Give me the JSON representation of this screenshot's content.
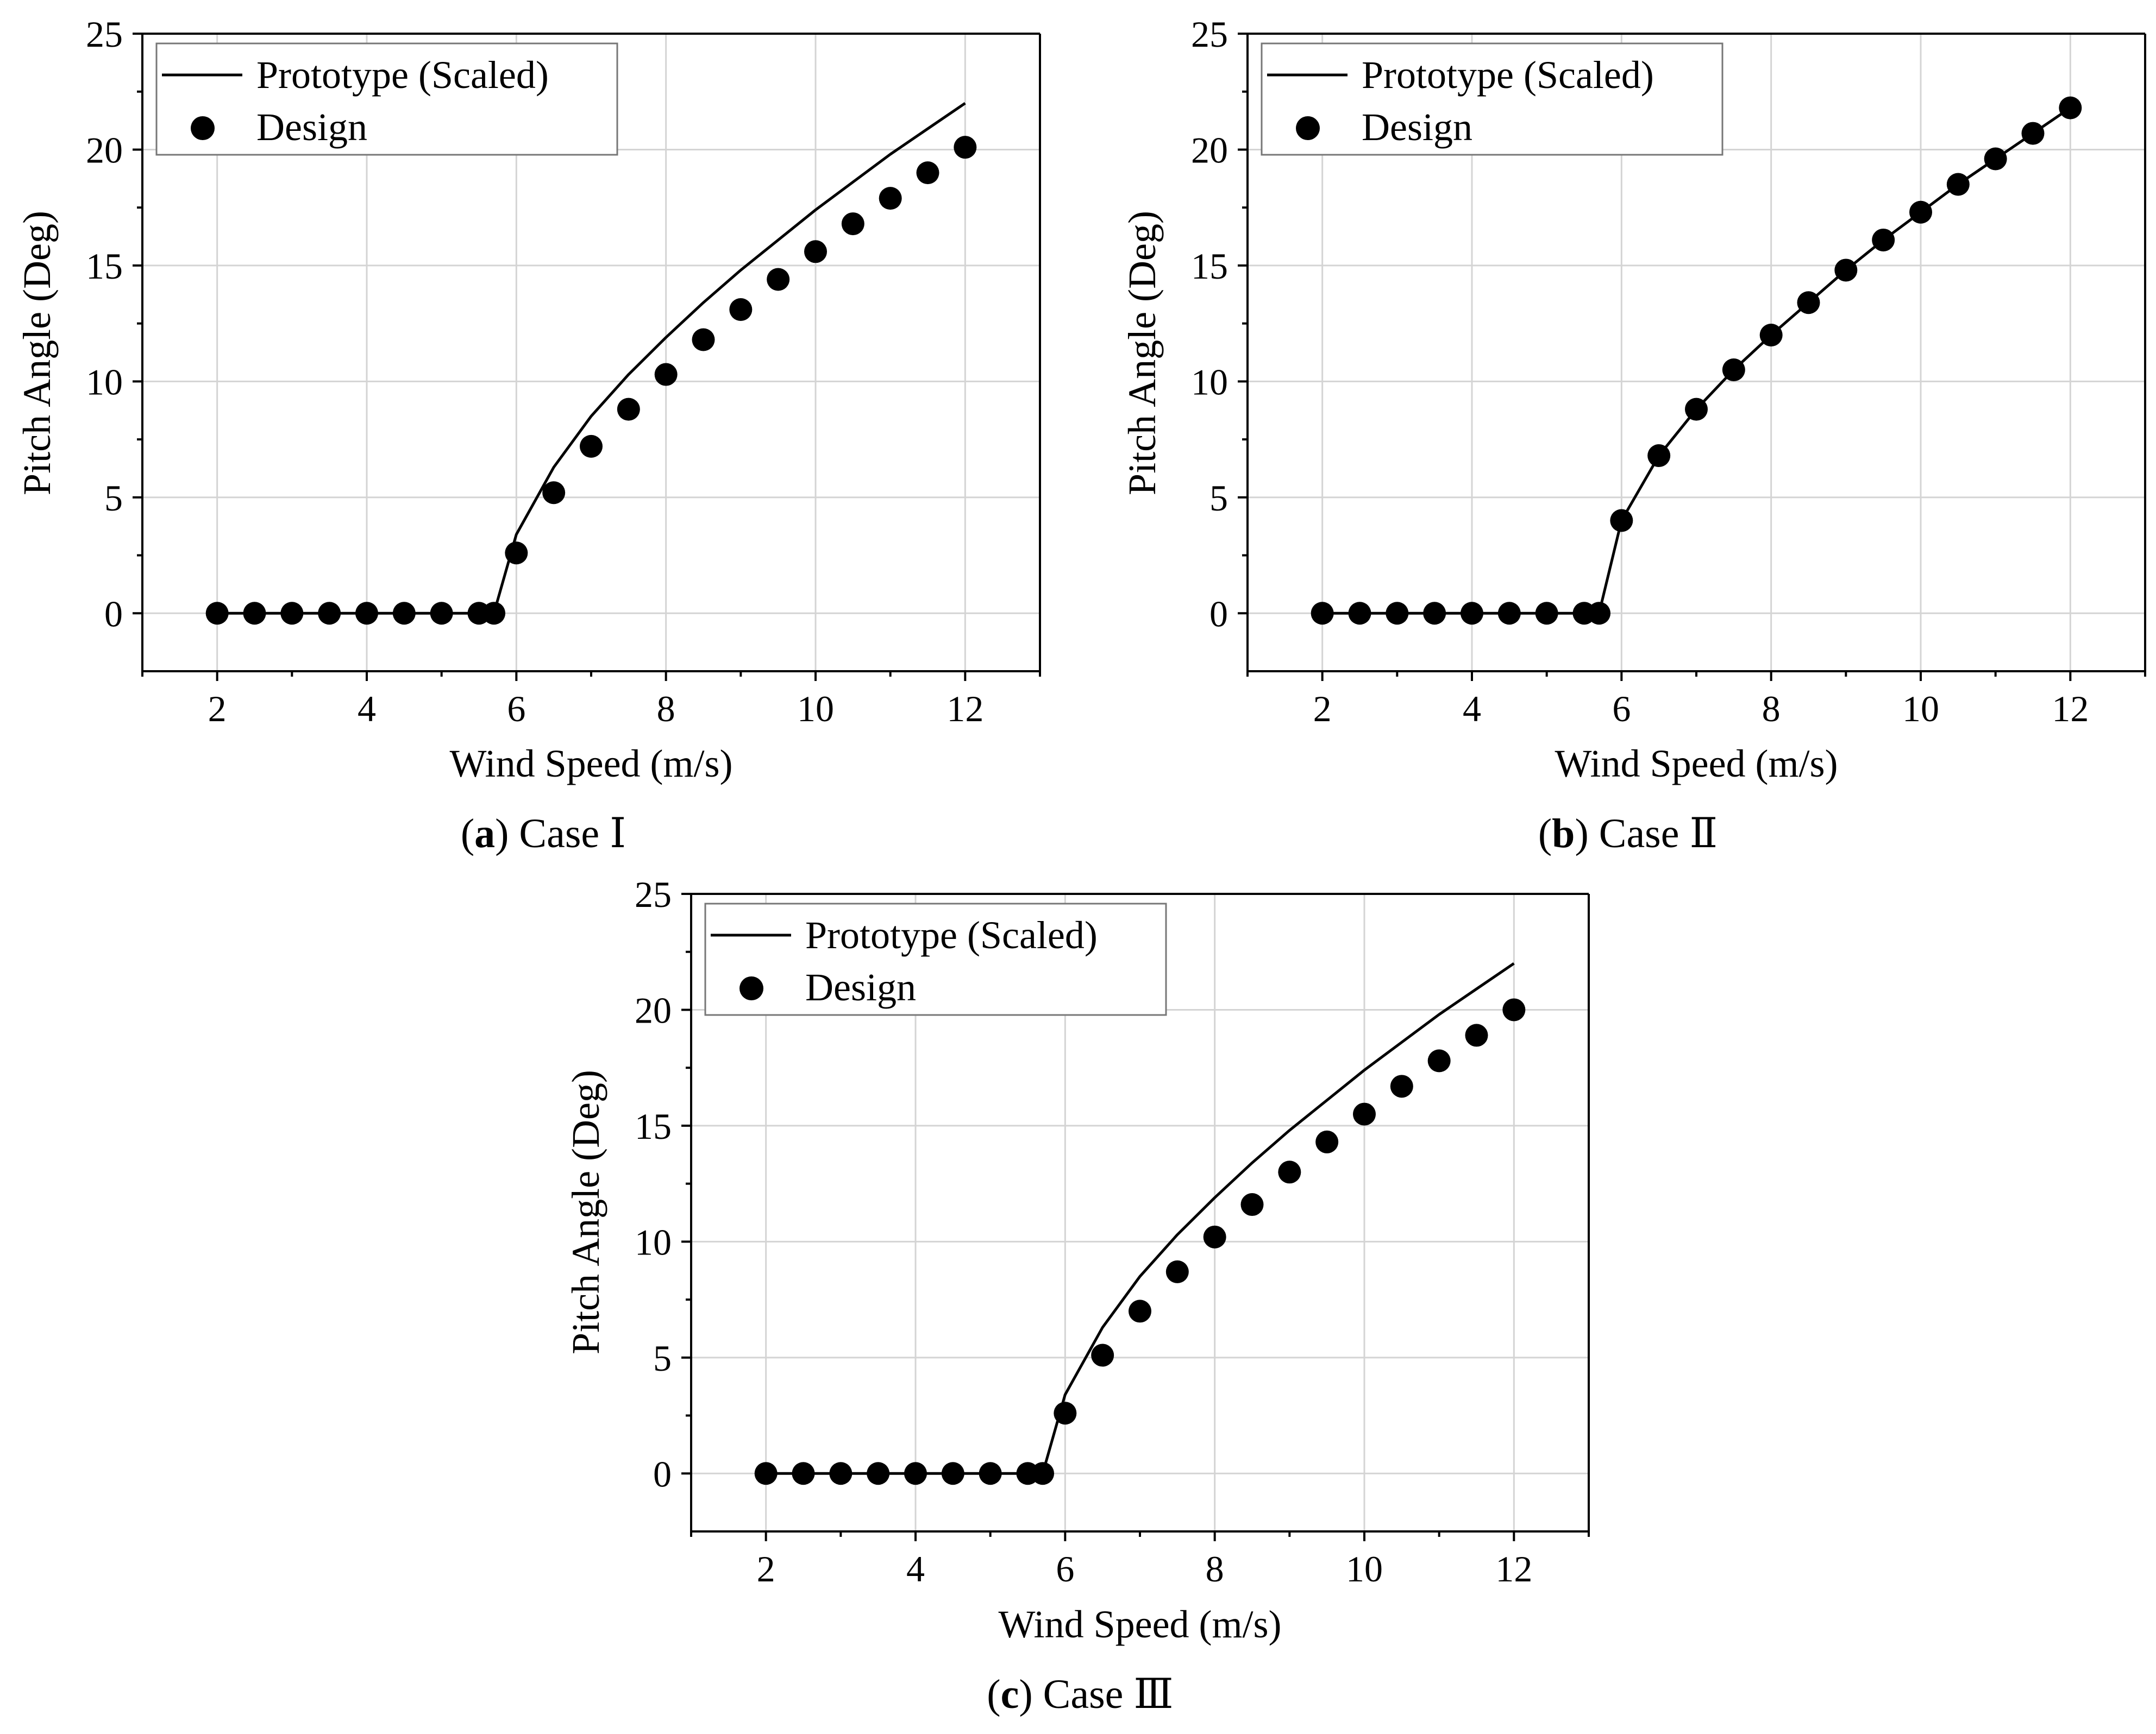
{
  "figure": {
    "panels": [
      {
        "caption_open": "(",
        "caption_letter": "a",
        "caption_text": ") Case Ⅰ",
        "xlabel": "Wind Speed (m/s)",
        "ylabel": "Pitch Angle (Deg)",
        "legend": [
          "Prototype (Scaled)",
          "Design"
        ]
      },
      {
        "caption_open": "(",
        "caption_letter": "b",
        "caption_text": ") Case Ⅱ",
        "xlabel": "Wind Speed (m/s)",
        "ylabel": "Pitch Angle (Deg)",
        "legend": [
          "Prototype (Scaled)",
          "Design"
        ]
      },
      {
        "caption_open": "(",
        "caption_letter": "c",
        "caption_text": ") Case Ⅲ",
        "xlabel": "Wind Speed (m/s)",
        "ylabel": "Pitch Angle (Deg)",
        "legend": [
          "Prototype (Scaled)",
          "Design"
        ]
      }
    ]
  },
  "chart_data": [
    {
      "type": "line",
      "title": "",
      "xlabel": "Wind Speed (m/s)",
      "ylabel": "Pitch Angle (Deg)",
      "xlim": [
        1,
        13
      ],
      "ylim": [
        -2.5,
        25
      ],
      "xticks": [
        2,
        4,
        6,
        8,
        10,
        12
      ],
      "yticks": [
        0,
        5,
        10,
        15,
        20,
        25
      ],
      "grid": true,
      "legend_position": "top-left",
      "series": [
        {
          "name": "Prototype (Scaled)",
          "style": "line",
          "x": [
            2,
            5.7,
            6,
            6.5,
            7,
            7.5,
            8,
            8.5,
            9,
            9.5,
            10,
            10.5,
            11,
            11.5,
            12
          ],
          "y": [
            0,
            0,
            3.4,
            6.3,
            8.5,
            10.3,
            11.9,
            13.4,
            14.8,
            16.1,
            17.4,
            18.6,
            19.8,
            20.9,
            22.0
          ]
        },
        {
          "name": "Design",
          "style": "scatter",
          "x": [
            2,
            2.5,
            3,
            3.5,
            4,
            4.5,
            5,
            5.5,
            5.7,
            6,
            6.5,
            7,
            7.5,
            8,
            8.5,
            9,
            9.5,
            10,
            10.5,
            11,
            11.5,
            12
          ],
          "y": [
            0,
            0,
            0,
            0,
            0,
            0,
            0,
            0,
            0,
            2.6,
            5.2,
            7.2,
            8.8,
            10.3,
            11.8,
            13.1,
            14.4,
            15.6,
            16.8,
            17.9,
            19.0,
            20.1
          ]
        }
      ]
    },
    {
      "type": "line",
      "title": "",
      "xlabel": "Wind Speed (m/s)",
      "ylabel": "Pitch Angle (Deg)",
      "xlim": [
        1,
        13
      ],
      "ylim": [
        -2.5,
        25
      ],
      "xticks": [
        2,
        4,
        6,
        8,
        10,
        12
      ],
      "yticks": [
        0,
        5,
        10,
        15,
        20,
        25
      ],
      "grid": true,
      "legend_position": "top-left",
      "series": [
        {
          "name": "Prototype (Scaled)",
          "style": "line",
          "x": [
            2,
            5.7,
            6,
            6.5,
            7,
            7.5,
            8,
            8.5,
            9,
            9.5,
            10,
            10.5,
            11,
            11.5,
            12
          ],
          "y": [
            0,
            0,
            4.0,
            6.8,
            8.8,
            10.5,
            12.0,
            13.4,
            14.8,
            16.1,
            17.3,
            18.5,
            19.6,
            20.7,
            21.8
          ]
        },
        {
          "name": "Design",
          "style": "scatter",
          "x": [
            2,
            2.5,
            3,
            3.5,
            4,
            4.5,
            5,
            5.5,
            5.7,
            6,
            6.5,
            7,
            7.5,
            8,
            8.5,
            9,
            9.5,
            10,
            10.5,
            11,
            11.5,
            12
          ],
          "y": [
            0,
            0,
            0,
            0,
            0,
            0,
            0,
            0,
            0,
            4.0,
            6.8,
            8.8,
            10.5,
            12.0,
            13.4,
            14.8,
            16.1,
            17.3,
            18.5,
            19.6,
            20.7,
            21.8
          ]
        }
      ]
    },
    {
      "type": "line",
      "title": "",
      "xlabel": "Wind Speed (m/s)",
      "ylabel": "Pitch Angle (Deg)",
      "xlim": [
        1,
        13
      ],
      "ylim": [
        -2.5,
        25
      ],
      "xticks": [
        2,
        4,
        6,
        8,
        10,
        12
      ],
      "yticks": [
        0,
        5,
        10,
        15,
        20,
        25
      ],
      "grid": true,
      "legend_position": "top-left",
      "series": [
        {
          "name": "Prototype (Scaled)",
          "style": "line",
          "x": [
            2,
            5.7,
            6,
            6.5,
            7,
            7.5,
            8,
            8.5,
            9,
            9.5,
            10,
            10.5,
            11,
            11.5,
            12
          ],
          "y": [
            0,
            0,
            3.4,
            6.3,
            8.5,
            10.3,
            11.9,
            13.4,
            14.8,
            16.1,
            17.4,
            18.6,
            19.8,
            20.9,
            22.0
          ]
        },
        {
          "name": "Design",
          "style": "scatter",
          "x": [
            2,
            2.5,
            3,
            3.5,
            4,
            4.5,
            5,
            5.5,
            5.7,
            6,
            6.5,
            7,
            7.5,
            8,
            8.5,
            9,
            9.5,
            10,
            10.5,
            11,
            11.5,
            12
          ],
          "y": [
            0,
            0,
            0,
            0,
            0,
            0,
            0,
            0,
            0,
            2.6,
            5.1,
            7.0,
            8.7,
            10.2,
            11.6,
            13.0,
            14.3,
            15.5,
            16.7,
            17.8,
            18.9,
            20.0
          ]
        }
      ]
    }
  ]
}
